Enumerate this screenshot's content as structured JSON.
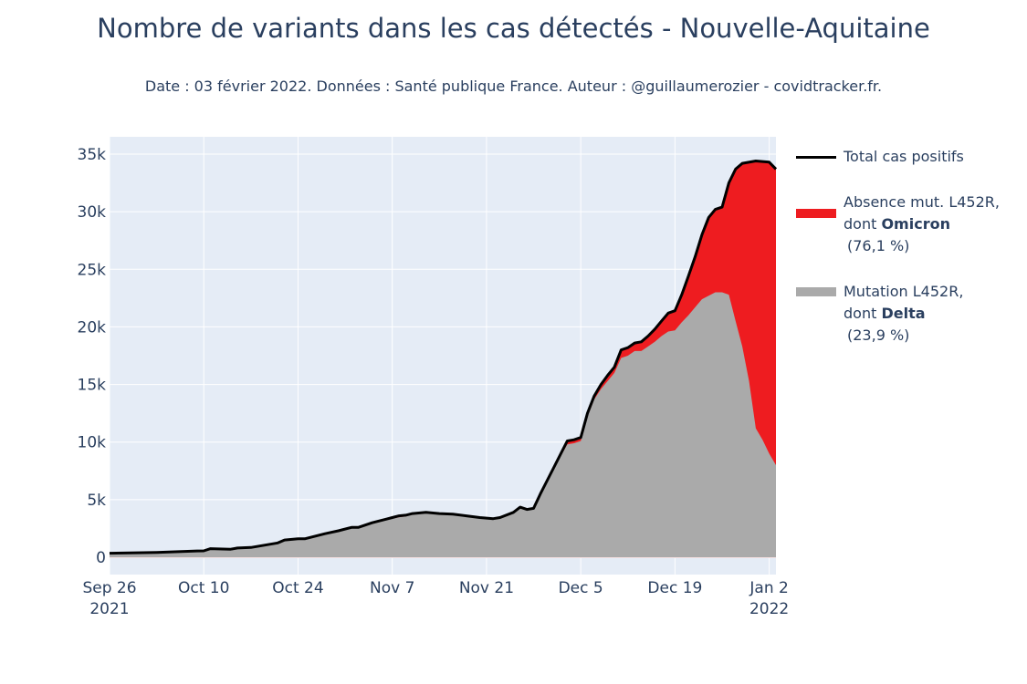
{
  "title": "Nombre de variants dans les cas détectés - Nouvelle-Aquitaine",
  "subtitle": "Date : 03 février 2022. Données : Santé publique France. Auteur : @guillaumerozier - covidtracker.fr.",
  "colors": {
    "plot_bg": "#e5ecf6",
    "grid": "#ffffff",
    "total": "#000000",
    "omicron": "#ee1c20",
    "delta": "#aaaaaa",
    "text": "#2a3f5f"
  },
  "legend": {
    "total": "Total cas positifs",
    "omicron_line1": "Absence mut. L452R,",
    "omicron_prefix": "dont ",
    "omicron_bold": "Omicron",
    "omicron_pct": "(76,1 %)",
    "delta_line1": "Mutation L452R,",
    "delta_prefix": "dont ",
    "delta_bold": "Delta",
    "delta_pct": "(23,9 %)"
  },
  "chart_data": {
    "type": "area",
    "x_type": "date",
    "x_range": [
      "2021-09-26",
      "2022-01-03"
    ],
    "y_range": [
      -1500,
      36500
    ],
    "grid": true,
    "legend_position": "right",
    "y_ticks": [
      {
        "value": 0,
        "label": "0"
      },
      {
        "value": 5000,
        "label": "5k"
      },
      {
        "value": 10000,
        "label": "10k"
      },
      {
        "value": 15000,
        "label": "15k"
      },
      {
        "value": 20000,
        "label": "20k"
      },
      {
        "value": 25000,
        "label": "25k"
      },
      {
        "value": 30000,
        "label": "30k"
      },
      {
        "value": 35000,
        "label": "35k"
      }
    ],
    "x_ticks": [
      {
        "date": "2021-09-26",
        "label": "Sep 26",
        "label2": "2021"
      },
      {
        "date": "2021-10-10",
        "label": "Oct 10",
        "label2": ""
      },
      {
        "date": "2021-10-24",
        "label": "Oct 24",
        "label2": ""
      },
      {
        "date": "2021-11-07",
        "label": "Nov 7",
        "label2": ""
      },
      {
        "date": "2021-11-21",
        "label": "Nov 21",
        "label2": ""
      },
      {
        "date": "2021-12-05",
        "label": "Dec 5",
        "label2": ""
      },
      {
        "date": "2021-12-19",
        "label": "Dec 19",
        "label2": ""
      },
      {
        "date": "2022-01-02",
        "label": "Jan 2",
        "label2": "2022"
      }
    ],
    "series": [
      {
        "name": "Total cas positifs",
        "kind": "line",
        "points": [
          [
            "2021-09-26",
            350
          ],
          [
            "2021-10-03",
            420
          ],
          [
            "2021-10-09",
            550
          ],
          [
            "2021-10-10",
            560
          ],
          [
            "2021-10-11",
            750
          ],
          [
            "2021-10-14",
            700
          ],
          [
            "2021-10-15",
            800
          ],
          [
            "2021-10-17",
            850
          ],
          [
            "2021-10-19",
            1050
          ],
          [
            "2021-10-21",
            1250
          ],
          [
            "2021-10-22",
            1500
          ],
          [
            "2021-10-24",
            1600
          ],
          [
            "2021-10-25",
            1600
          ],
          [
            "2021-10-26",
            1750
          ],
          [
            "2021-10-28",
            2050
          ],
          [
            "2021-10-30",
            2300
          ],
          [
            "2021-11-01",
            2600
          ],
          [
            "2021-11-02",
            2600
          ],
          [
            "2021-11-03",
            2800
          ],
          [
            "2021-11-04",
            3000
          ],
          [
            "2021-11-05",
            3150
          ],
          [
            "2021-11-06",
            3300
          ],
          [
            "2021-11-07",
            3450
          ],
          [
            "2021-11-08",
            3600
          ],
          [
            "2021-11-09",
            3650
          ],
          [
            "2021-11-10",
            3800
          ],
          [
            "2021-11-12",
            3900
          ],
          [
            "2021-11-14",
            3800
          ],
          [
            "2021-11-16",
            3750
          ],
          [
            "2021-11-18",
            3600
          ],
          [
            "2021-11-20",
            3450
          ],
          [
            "2021-11-22",
            3350
          ],
          [
            "2021-11-23",
            3450
          ],
          [
            "2021-11-25",
            3900
          ],
          [
            "2021-11-26",
            4350
          ],
          [
            "2021-11-27",
            4150
          ],
          [
            "2021-11-28",
            4250
          ],
          [
            "2021-11-29",
            5500
          ],
          [
            "2021-12-01",
            7800
          ],
          [
            "2021-12-03",
            10100
          ],
          [
            "2021-12-04",
            10200
          ],
          [
            "2021-12-05",
            10400
          ],
          [
            "2021-12-06",
            12500
          ],
          [
            "2021-12-07",
            14000
          ],
          [
            "2021-12-08",
            15000
          ],
          [
            "2021-12-09",
            15800
          ],
          [
            "2021-12-10",
            16500
          ],
          [
            "2021-12-11",
            18000
          ],
          [
            "2021-12-12",
            18200
          ],
          [
            "2021-12-13",
            18600
          ],
          [
            "2021-12-14",
            18700
          ],
          [
            "2021-12-15",
            19200
          ],
          [
            "2021-12-16",
            19800
          ],
          [
            "2021-12-17",
            20500
          ],
          [
            "2021-12-18",
            21200
          ],
          [
            "2021-12-19",
            21400
          ],
          [
            "2021-12-20",
            22800
          ],
          [
            "2021-12-21",
            24400
          ],
          [
            "2021-12-22",
            26100
          ],
          [
            "2021-12-23",
            28000
          ],
          [
            "2021-12-24",
            29500
          ],
          [
            "2021-12-25",
            30200
          ],
          [
            "2021-12-26",
            30400
          ],
          [
            "2021-12-27",
            32500
          ],
          [
            "2021-12-28",
            33700
          ],
          [
            "2021-12-29",
            34200
          ],
          [
            "2021-12-31",
            34400
          ],
          [
            "2022-01-02",
            34300
          ],
          [
            "2022-01-03",
            33700
          ]
        ]
      },
      {
        "name": "Absence mut. L452R, dont Omicron (76,1 %)",
        "kind": "stacked-area-top",
        "points": [
          [
            "2021-09-26",
            350
          ],
          [
            "2021-10-03",
            420
          ],
          [
            "2021-10-09",
            550
          ],
          [
            "2021-10-10",
            560
          ],
          [
            "2021-10-11",
            750
          ],
          [
            "2021-10-14",
            700
          ],
          [
            "2021-10-15",
            800
          ],
          [
            "2021-10-17",
            850
          ],
          [
            "2021-10-19",
            1050
          ],
          [
            "2021-10-21",
            1250
          ],
          [
            "2021-10-22",
            1500
          ],
          [
            "2021-10-24",
            1600
          ],
          [
            "2021-10-25",
            1600
          ],
          [
            "2021-10-26",
            1750
          ],
          [
            "2021-10-28",
            2050
          ],
          [
            "2021-10-30",
            2300
          ],
          [
            "2021-11-01",
            2600
          ],
          [
            "2021-11-02",
            2600
          ],
          [
            "2021-11-03",
            2800
          ],
          [
            "2021-11-04",
            3000
          ],
          [
            "2021-11-05",
            3150
          ],
          [
            "2021-11-06",
            3300
          ],
          [
            "2021-11-07",
            3450
          ],
          [
            "2021-11-08",
            3600
          ],
          [
            "2021-11-09",
            3650
          ],
          [
            "2021-11-10",
            3800
          ],
          [
            "2021-11-12",
            3900
          ],
          [
            "2021-11-14",
            3800
          ],
          [
            "2021-11-16",
            3750
          ],
          [
            "2021-11-18",
            3600
          ],
          [
            "2021-11-20",
            3450
          ],
          [
            "2021-11-22",
            3350
          ],
          [
            "2021-11-23",
            3450
          ],
          [
            "2021-11-25",
            3900
          ],
          [
            "2021-11-26",
            4350
          ],
          [
            "2021-11-27",
            4150
          ],
          [
            "2021-11-28",
            4250
          ],
          [
            "2021-11-29",
            5500
          ],
          [
            "2021-12-01",
            7800
          ],
          [
            "2021-12-03",
            10100
          ],
          [
            "2021-12-04",
            10200
          ],
          [
            "2021-12-05",
            10400
          ],
          [
            "2021-12-06",
            12500
          ],
          [
            "2021-12-07",
            14000
          ],
          [
            "2021-12-08",
            15000
          ],
          [
            "2021-12-09",
            15800
          ],
          [
            "2021-12-10",
            16500
          ],
          [
            "2021-12-11",
            18000
          ],
          [
            "2021-12-12",
            18200
          ],
          [
            "2021-12-13",
            18600
          ],
          [
            "2021-12-14",
            18700
          ],
          [
            "2021-12-15",
            19200
          ],
          [
            "2021-12-16",
            19800
          ],
          [
            "2021-12-17",
            20500
          ],
          [
            "2021-12-18",
            21200
          ],
          [
            "2021-12-19",
            21400
          ],
          [
            "2021-12-20",
            22800
          ],
          [
            "2021-12-21",
            24400
          ],
          [
            "2021-12-22",
            26100
          ],
          [
            "2021-12-23",
            28000
          ],
          [
            "2021-12-24",
            29500
          ],
          [
            "2021-12-25",
            30200
          ],
          [
            "2021-12-26",
            30400
          ],
          [
            "2021-12-27",
            32500
          ],
          [
            "2021-12-28",
            33700
          ],
          [
            "2021-12-29",
            34200
          ],
          [
            "2021-12-31",
            34400
          ],
          [
            "2022-01-02",
            34300
          ],
          [
            "2022-01-03",
            33700
          ]
        ]
      },
      {
        "name": "Mutation L452R, dont Delta (23,9 %)",
        "kind": "area",
        "points": [
          [
            "2021-09-26",
            350
          ],
          [
            "2021-10-03",
            420
          ],
          [
            "2021-10-09",
            550
          ],
          [
            "2021-10-10",
            560
          ],
          [
            "2021-10-11",
            750
          ],
          [
            "2021-10-14",
            700
          ],
          [
            "2021-10-15",
            800
          ],
          [
            "2021-10-17",
            850
          ],
          [
            "2021-10-19",
            1050
          ],
          [
            "2021-10-21",
            1250
          ],
          [
            "2021-10-22",
            1480
          ],
          [
            "2021-10-24",
            1580
          ],
          [
            "2021-10-25",
            1580
          ],
          [
            "2021-10-26",
            1720
          ],
          [
            "2021-10-28",
            2000
          ],
          [
            "2021-10-30",
            2250
          ],
          [
            "2021-11-01",
            2550
          ],
          [
            "2021-11-02",
            2550
          ],
          [
            "2021-11-03",
            2700
          ],
          [
            "2021-11-04",
            2900
          ],
          [
            "2021-11-05",
            3050
          ],
          [
            "2021-11-06",
            3200
          ],
          [
            "2021-11-07",
            3350
          ],
          [
            "2021-11-08",
            3480
          ],
          [
            "2021-11-09",
            3550
          ],
          [
            "2021-11-10",
            3700
          ],
          [
            "2021-11-12",
            3850
          ],
          [
            "2021-11-14",
            3780
          ],
          [
            "2021-11-16",
            3720
          ],
          [
            "2021-11-18",
            3580
          ],
          [
            "2021-11-20",
            3430
          ],
          [
            "2021-11-22",
            3330
          ],
          [
            "2021-11-23",
            3420
          ],
          [
            "2021-11-25",
            3880
          ],
          [
            "2021-11-26",
            4320
          ],
          [
            "2021-11-27",
            4120
          ],
          [
            "2021-11-28",
            4220
          ],
          [
            "2021-11-29",
            5450
          ],
          [
            "2021-12-01",
            7700
          ],
          [
            "2021-12-03",
            9800
          ],
          [
            "2021-12-04",
            9900
          ],
          [
            "2021-12-05",
            10100
          ],
          [
            "2021-12-06",
            12200
          ],
          [
            "2021-12-07",
            13700
          ],
          [
            "2021-12-08",
            14600
          ],
          [
            "2021-12-09",
            15300
          ],
          [
            "2021-12-10",
            16000
          ],
          [
            "2021-12-11",
            17300
          ],
          [
            "2021-12-12",
            17500
          ],
          [
            "2021-12-13",
            17900
          ],
          [
            "2021-12-14",
            17900
          ],
          [
            "2021-12-15",
            18300
          ],
          [
            "2021-12-16",
            18700
          ],
          [
            "2021-12-17",
            19200
          ],
          [
            "2021-12-18",
            19600
          ],
          [
            "2021-12-19",
            19700
          ],
          [
            "2021-12-20",
            20400
          ],
          [
            "2021-12-21",
            21000
          ],
          [
            "2021-12-22",
            21700
          ],
          [
            "2021-12-23",
            22400
          ],
          [
            "2021-12-24",
            22700
          ],
          [
            "2021-12-25",
            23000
          ],
          [
            "2021-12-26",
            23000
          ],
          [
            "2021-12-27",
            22800
          ],
          [
            "2021-12-28",
            20500
          ],
          [
            "2021-12-29",
            18300
          ],
          [
            "2021-12-30",
            15300
          ],
          [
            "2021-12-31",
            11200
          ],
          [
            "2022-01-01",
            10200
          ],
          [
            "2022-01-02",
            9000
          ],
          [
            "2022-01-03",
            8000
          ]
        ]
      }
    ]
  }
}
